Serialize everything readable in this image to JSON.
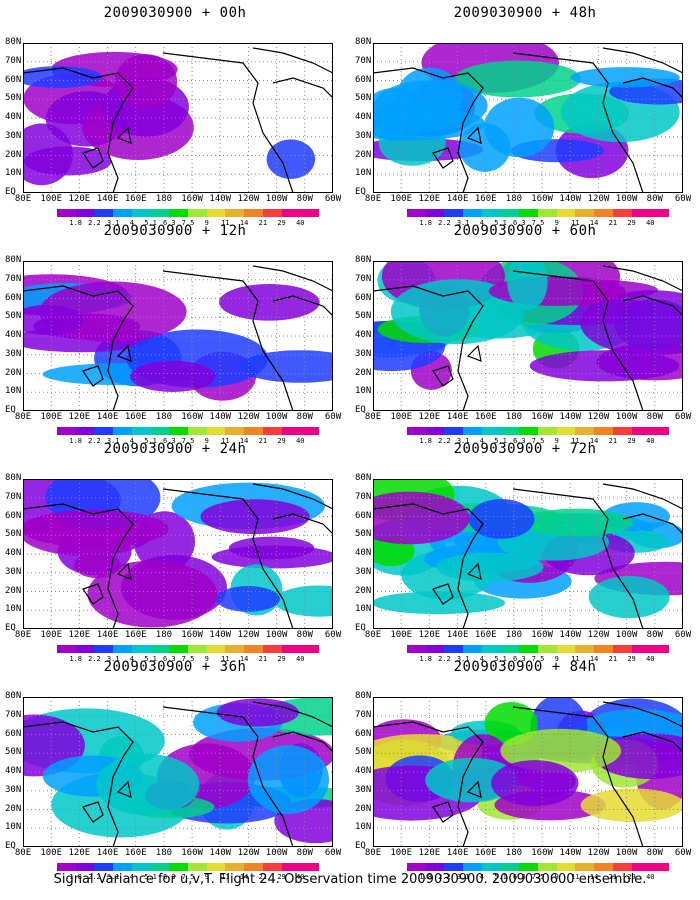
{
  "colors": {
    "levels": [
      "#a000c8",
      "#8200dc",
      "#1e3cff",
      "#00a0ff",
      "#00c8c8",
      "#00d28c",
      "#00dc00",
      "#a0e632",
      "#e6dc32",
      "#e6af2d",
      "#f08228",
      "#fa3c3c",
      "#f00082"
    ],
    "land": "#000000"
  },
  "xticks": [
    "80E",
    "100E",
    "120E",
    "140E",
    "160E",
    "180",
    "160W",
    "140W",
    "120W",
    "100W",
    "80W",
    "60W"
  ],
  "yticks": [
    "80N",
    "70N",
    "60N",
    "50N",
    "40N",
    "30N",
    "20N",
    "10N",
    "EQ"
  ],
  "colorbar_labels": [
    "1.8",
    "2.2",
    "3.1",
    "4",
    "5.1",
    "6.3",
    "7.5",
    "9",
    "11",
    "14",
    "21",
    "29",
    "40"
  ],
  "panels": [
    {
      "title": "2009030900 + 00h",
      "level": 0
    },
    {
      "title": "2009030900 + 48h",
      "level": 3
    },
    {
      "title": "2009030900 + 12h",
      "level": 1
    },
    {
      "title": "2009030900 + 60h",
      "level": 4
    },
    {
      "title": "2009030900 + 24h",
      "level": 2
    },
    {
      "title": "2009030900 + 72h",
      "level": 5
    },
    {
      "title": "2009030900 + 36h",
      "level": 3
    },
    {
      "title": "2009030900 + 84h",
      "level": 6
    }
  ],
  "caption": "Signal Variance for u,v,T. Flight 24. Observation time 2009030900. 2009030600 ensemble."
}
